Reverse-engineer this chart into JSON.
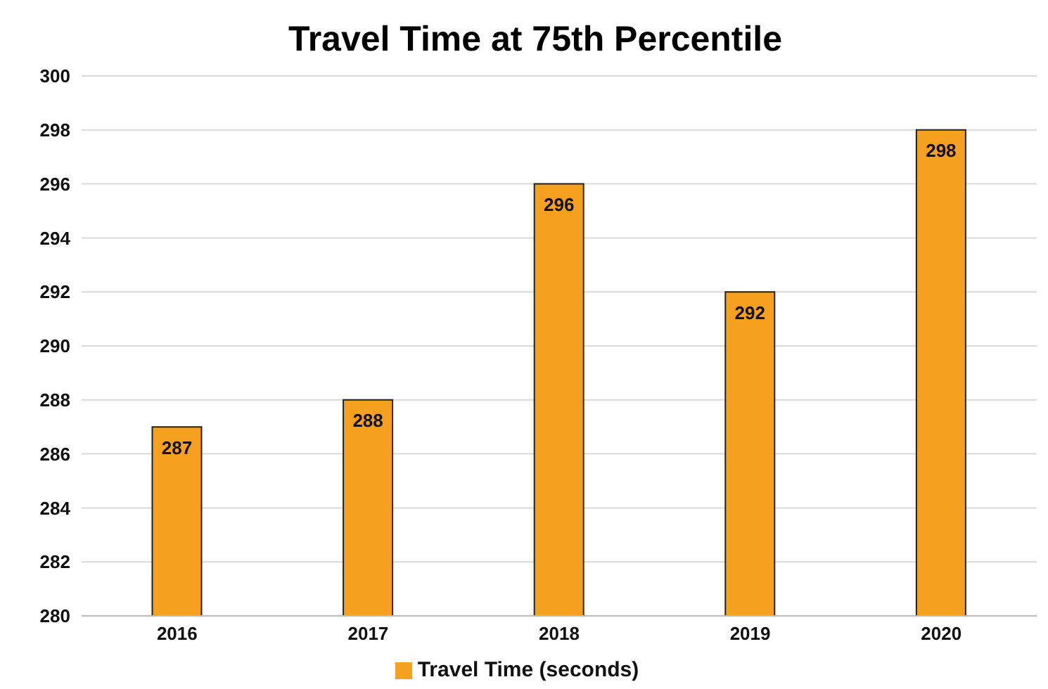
{
  "chart_data": {
    "type": "bar",
    "title": "Travel Time at 75th Percentile",
    "categories": [
      "2016",
      "2017",
      "2018",
      "2019",
      "2020"
    ],
    "series": [
      {
        "name": "Travel Time (seconds)",
        "color": "#f5a01f",
        "values": [
          287,
          288,
          296,
          292,
          298
        ]
      }
    ],
    "ylim": [
      280,
      300
    ],
    "yticks": [
      280,
      282,
      284,
      286,
      288,
      290,
      292,
      294,
      296,
      298,
      300
    ],
    "grid": "y",
    "legend": "bottom",
    "data_labels": true
  }
}
